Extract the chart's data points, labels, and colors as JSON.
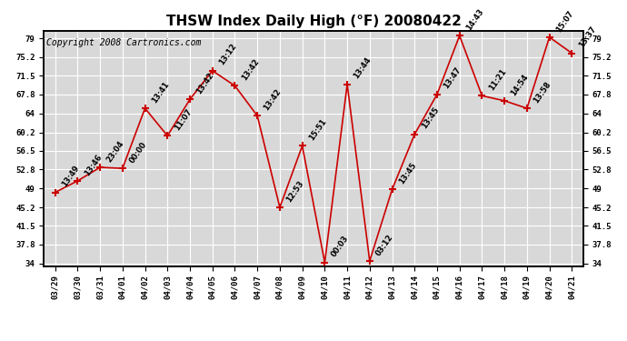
{
  "title": "THSW Index Daily High (°F) 20080422",
  "copyright": "Copyright 2008 Cartronics.com",
  "background_color": "#ffffff",
  "plot_bg_color": "#d8d8d8",
  "grid_color": "#ffffff",
  "line_color": "#cc0000",
  "marker_color": "#cc0000",
  "x_labels": [
    "03/29",
    "03/30",
    "03/31",
    "04/01",
    "04/02",
    "04/03",
    "04/04",
    "04/05",
    "04/06",
    "04/07",
    "04/08",
    "04/09",
    "04/10",
    "04/11",
    "04/12",
    "04/13",
    "04/14",
    "04/15",
    "04/16",
    "04/17",
    "04/18",
    "04/19",
    "04/20",
    "04/21"
  ],
  "y_values": [
    48.2,
    50.5,
    53.2,
    53.0,
    65.0,
    59.5,
    66.8,
    72.5,
    69.5,
    63.5,
    45.2,
    57.5,
    34.2,
    69.8,
    34.5,
    48.8,
    59.8,
    67.8,
    79.5,
    67.5,
    66.5,
    65.0,
    79.2,
    76.0
  ],
  "point_labels": [
    "13:49",
    "13:46",
    "23:04",
    "00:00",
    "13:41",
    "11:07",
    "13:42",
    "13:12",
    "13:42",
    "13:42",
    "12:53",
    "15:51",
    "00:03",
    "13:44",
    "03:12",
    "13:45",
    "13:45",
    "13:47",
    "14:43",
    "11:21",
    "14:54",
    "13:58",
    "15:07",
    "13:37"
  ],
  "ylim_min": 34.0,
  "ylim_max": 79.0,
  "yticks": [
    34.0,
    37.8,
    41.5,
    45.2,
    49.0,
    52.8,
    56.5,
    60.2,
    64.0,
    67.8,
    71.5,
    75.2,
    79.0
  ],
  "title_fontsize": 11,
  "copyright_fontsize": 7,
  "label_fontsize": 6
}
